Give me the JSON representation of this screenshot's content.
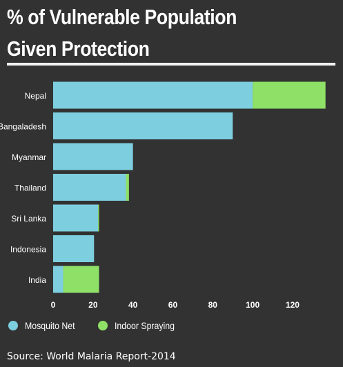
{
  "title_lines": [
    "% of Vulnerable Population",
    "Given Protection"
  ],
  "source": "Source: World Malaria Report-2014",
  "colors": {
    "background": "#323232",
    "mosquito_net": "#7dcfdf",
    "indoor_spraying": "#8fe067",
    "text": "#ffffff"
  },
  "chart_data": {
    "type": "bar",
    "orientation": "horizontal",
    "stacked": true,
    "categories": [
      "Nepal",
      "Bangaladesh",
      "Myanmar",
      "Thailand",
      "Sri Lanka",
      "Indonesia",
      "India"
    ],
    "series": [
      {
        "name": "Mosquito Net",
        "values": [
          100,
          90,
          40,
          36.5,
          22.5,
          20.5,
          5
        ]
      },
      {
        "name": "Indoor Spraying",
        "values": [
          36.5,
          0,
          0,
          1.5,
          0.5,
          0,
          18
        ]
      }
    ],
    "x_ticks": [
      0,
      20,
      40,
      60,
      80,
      100,
      120
    ],
    "xlim": [
      0,
      138
    ],
    "grid": false,
    "legend": "bottom-left"
  }
}
